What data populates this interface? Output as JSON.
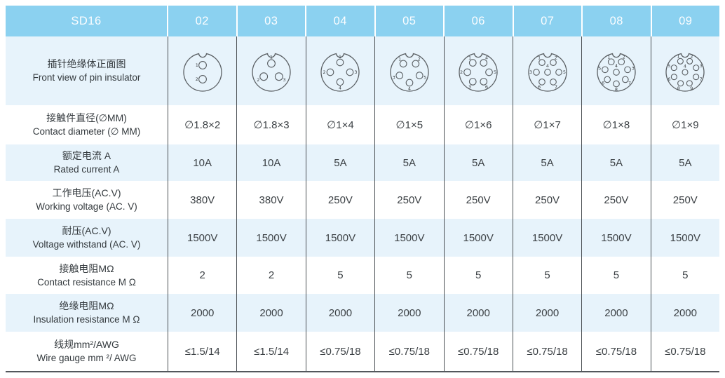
{
  "page": {
    "title": "SD16 connector specification table"
  },
  "table": {
    "model": "SD16",
    "columns": [
      "02",
      "03",
      "04",
      "05",
      "06",
      "07",
      "08",
      "09"
    ],
    "rows": [
      {
        "label_zh": "插针绝缘体正面图",
        "label_en": "Front view of pin insulator",
        "type": "diagram",
        "pins": [
          2,
          3,
          4,
          5,
          6,
          7,
          8,
          9
        ]
      },
      {
        "label_zh": "接触件直径(∅MM)",
        "label_en": "Contact diameter (∅ MM)",
        "values": [
          "∅1.8×2",
          "∅1.8×3",
          "∅1×4",
          "∅1×5",
          "∅1×6",
          "∅1×7",
          "∅1×8",
          "∅1×9"
        ]
      },
      {
        "label_zh": "额定电流 A",
        "label_en": "Rated current A",
        "values": [
          "10A",
          "10A",
          "5A",
          "5A",
          "5A",
          "5A",
          "5A",
          "5A"
        ]
      },
      {
        "label_zh": "工作电压(AC.V)",
        "label_en": "Working voltage (AC. V)",
        "values": [
          "380V",
          "380V",
          "250V",
          "250V",
          "250V",
          "250V",
          "250V",
          "250V"
        ]
      },
      {
        "label_zh": "耐压(AC.V)",
        "label_en": "Voltage withstand (AC. V)",
        "values": [
          "1500V",
          "1500V",
          "1500V",
          "1500V",
          "1500V",
          "1500V",
          "1500V",
          "1500V"
        ]
      },
      {
        "label_zh": "接触电阻MΩ",
        "label_en": "Contact resistance M Ω",
        "values": [
          "2",
          "2",
          "5",
          "5",
          "5",
          "5",
          "5",
          "5"
        ]
      },
      {
        "label_zh": "绝缘电阻MΩ",
        "label_en": "Insulation resistance M Ω",
        "values": [
          "2000",
          "2000",
          "2000",
          "2000",
          "2000",
          "2000",
          "2000",
          "2000"
        ]
      },
      {
        "label_zh": "线规mm²/AWG",
        "label_en": "Wire gauge mm ²/ AWG",
        "values": [
          "≤1.5/14",
          "≤1.5/14",
          "≤0.75/18",
          "≤0.75/18",
          "≤0.75/18",
          "≤0.75/18",
          "≤0.75/18",
          "≤0.75/18"
        ]
      }
    ],
    "colors": {
      "header_bg": "#8BD1F0",
      "header_text": "#FBFDFF",
      "band_bg": "#E7F3FB",
      "row_bg": "#FFFFFF",
      "border": "#4B5054",
      "bottom_border": "#53575C",
      "text": "#3C4145",
      "diagram_stroke": "#5B6064"
    }
  }
}
